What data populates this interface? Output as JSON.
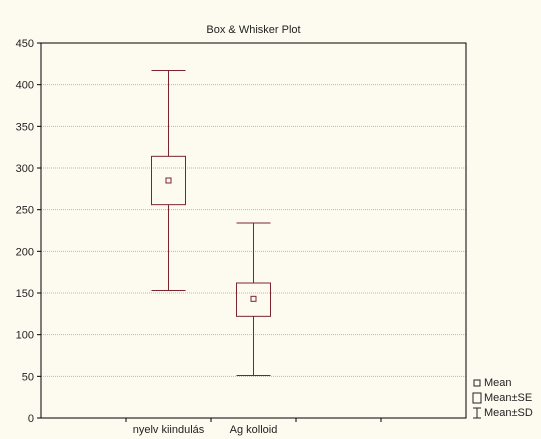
{
  "chart_data": {
    "type": "box",
    "title": "Box & Whisker Plot",
    "xlabel": "",
    "ylabel": "",
    "ylim": [
      0,
      450
    ],
    "yticks": [
      0,
      50,
      100,
      150,
      200,
      250,
      300,
      350,
      400,
      450
    ],
    "grid": true,
    "categories": [
      "nyelv kiindulás",
      "Ag kolloid"
    ],
    "series": [
      {
        "category": "nyelv kiindulás",
        "mean": 285,
        "se_low": 256,
        "se_high": 314,
        "sd_low": 153,
        "sd_high": 417
      },
      {
        "category": "Ag kolloid",
        "mean": 143,
        "se_low": 122,
        "se_high": 162,
        "sd_low": 51,
        "sd_high": 234
      }
    ],
    "legend_position": "bottom-right",
    "legend": [
      {
        "symbol": "mean",
        "label": "Mean"
      },
      {
        "symbol": "box",
        "label": "Mean±SE"
      },
      {
        "symbol": "whisker",
        "label": "Mean±SD"
      }
    ],
    "colors": {
      "box": "#7a2430",
      "axis": "#000000",
      "grid": "#b8b8b8",
      "background": "#fdfbf0"
    }
  }
}
